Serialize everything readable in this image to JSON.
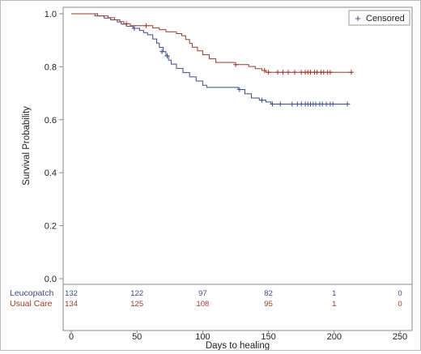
{
  "chart_data": {
    "type": "line",
    "title": "",
    "xlabel": "Days to healing",
    "ylabel": "Survival Probability",
    "xlim": [
      0,
      250
    ],
    "ylim": [
      0,
      1
    ],
    "x_ticks": [
      0,
      50,
      100,
      150,
      200,
      250
    ],
    "y_ticks": [
      0.0,
      0.2,
      0.4,
      0.6,
      0.8,
      1.0
    ],
    "y_tick_labels": [
      "0.0",
      "0.2",
      "0.4",
      "0.6",
      "0.8",
      "1.0"
    ],
    "grid": false,
    "legend": {
      "position": "top-right",
      "label": "Censored",
      "symbol": "+"
    },
    "series": [
      {
        "name": "Leucopatch",
        "color": "#3b4a8c",
        "steps": [
          [
            0,
            1.0
          ],
          [
            10,
            1.0
          ],
          [
            18,
            0.992
          ],
          [
            25,
            0.984
          ],
          [
            30,
            0.977
          ],
          [
            35,
            0.969
          ],
          [
            38,
            0.961
          ],
          [
            42,
            0.953
          ],
          [
            47,
            0.945
          ],
          [
            52,
            0.937
          ],
          [
            55,
            0.929
          ],
          [
            58,
            0.921
          ],
          [
            62,
            0.905
          ],
          [
            65,
            0.889
          ],
          [
            67,
            0.873
          ],
          [
            70,
            0.857
          ],
          [
            72,
            0.841
          ],
          [
            74,
            0.825
          ],
          [
            76,
            0.81
          ],
          [
            80,
            0.794
          ],
          [
            85,
            0.778
          ],
          [
            90,
            0.762
          ],
          [
            95,
            0.746
          ],
          [
            100,
            0.73
          ],
          [
            103,
            0.722
          ],
          [
            127,
            0.714
          ],
          [
            132,
            0.698
          ],
          [
            137,
            0.682
          ],
          [
            143,
            0.674
          ],
          [
            148,
            0.667
          ],
          [
            152,
            0.659
          ],
          [
            212,
            0.659
          ]
        ],
        "censored": [
          [
            48,
            0.945
          ],
          [
            69,
            0.857
          ],
          [
            73,
            0.841
          ],
          [
            128,
            0.714
          ],
          [
            145,
            0.674
          ],
          [
            153,
            0.659
          ],
          [
            159,
            0.659
          ],
          [
            168,
            0.659
          ],
          [
            172,
            0.659
          ],
          [
            175,
            0.659
          ],
          [
            178,
            0.659
          ],
          [
            180,
            0.659
          ],
          [
            182,
            0.659
          ],
          [
            184,
            0.659
          ],
          [
            186,
            0.659
          ],
          [
            189,
            0.659
          ],
          [
            191,
            0.659
          ],
          [
            194,
            0.659
          ],
          [
            197,
            0.659
          ],
          [
            199,
            0.659
          ],
          [
            210,
            0.659
          ]
        ]
      },
      {
        "name": "Usual Care",
        "color": "#9b3a2a",
        "steps": [
          [
            0,
            1.0
          ],
          [
            12,
            1.0
          ],
          [
            20,
            0.992
          ],
          [
            28,
            0.985
          ],
          [
            33,
            0.977
          ],
          [
            37,
            0.97
          ],
          [
            40,
            0.962
          ],
          [
            45,
            0.955
          ],
          [
            50,
            0.955
          ],
          [
            62,
            0.947
          ],
          [
            67,
            0.94
          ],
          [
            72,
            0.932
          ],
          [
            80,
            0.925
          ],
          [
            84,
            0.917
          ],
          [
            87,
            0.903
          ],
          [
            90,
            0.888
          ],
          [
            92,
            0.874
          ],
          [
            96,
            0.86
          ],
          [
            100,
            0.845
          ],
          [
            105,
            0.83
          ],
          [
            110,
            0.816
          ],
          [
            125,
            0.808
          ],
          [
            135,
            0.801
          ],
          [
            140,
            0.793
          ],
          [
            145,
            0.786
          ],
          [
            148,
            0.779
          ],
          [
            214,
            0.779
          ]
        ],
        "censored": [
          [
            42,
            0.962
          ],
          [
            57,
            0.955
          ],
          [
            125,
            0.808
          ],
          [
            147,
            0.786
          ],
          [
            150,
            0.779
          ],
          [
            157,
            0.779
          ],
          [
            161,
            0.779
          ],
          [
            165,
            0.779
          ],
          [
            170,
            0.779
          ],
          [
            175,
            0.779
          ],
          [
            178,
            0.779
          ],
          [
            180,
            0.779
          ],
          [
            182,
            0.779
          ],
          [
            185,
            0.779
          ],
          [
            187,
            0.779
          ],
          [
            190,
            0.779
          ],
          [
            192,
            0.779
          ],
          [
            195,
            0.779
          ],
          [
            197,
            0.779
          ],
          [
            213,
            0.779
          ]
        ]
      }
    ],
    "at_risk": {
      "times": [
        0,
        50,
        100,
        150,
        200,
        250
      ],
      "rows": [
        {
          "label": "Leucopatch",
          "color": "#3b4a8c",
          "values": [
            "132",
            "122",
            "97",
            "82",
            "1",
            "0"
          ]
        },
        {
          "label": "Usual Care",
          "color": "#9b3a2a",
          "values": [
            "134",
            "125",
            "108",
            "95",
            "1",
            "0"
          ]
        }
      ]
    }
  }
}
